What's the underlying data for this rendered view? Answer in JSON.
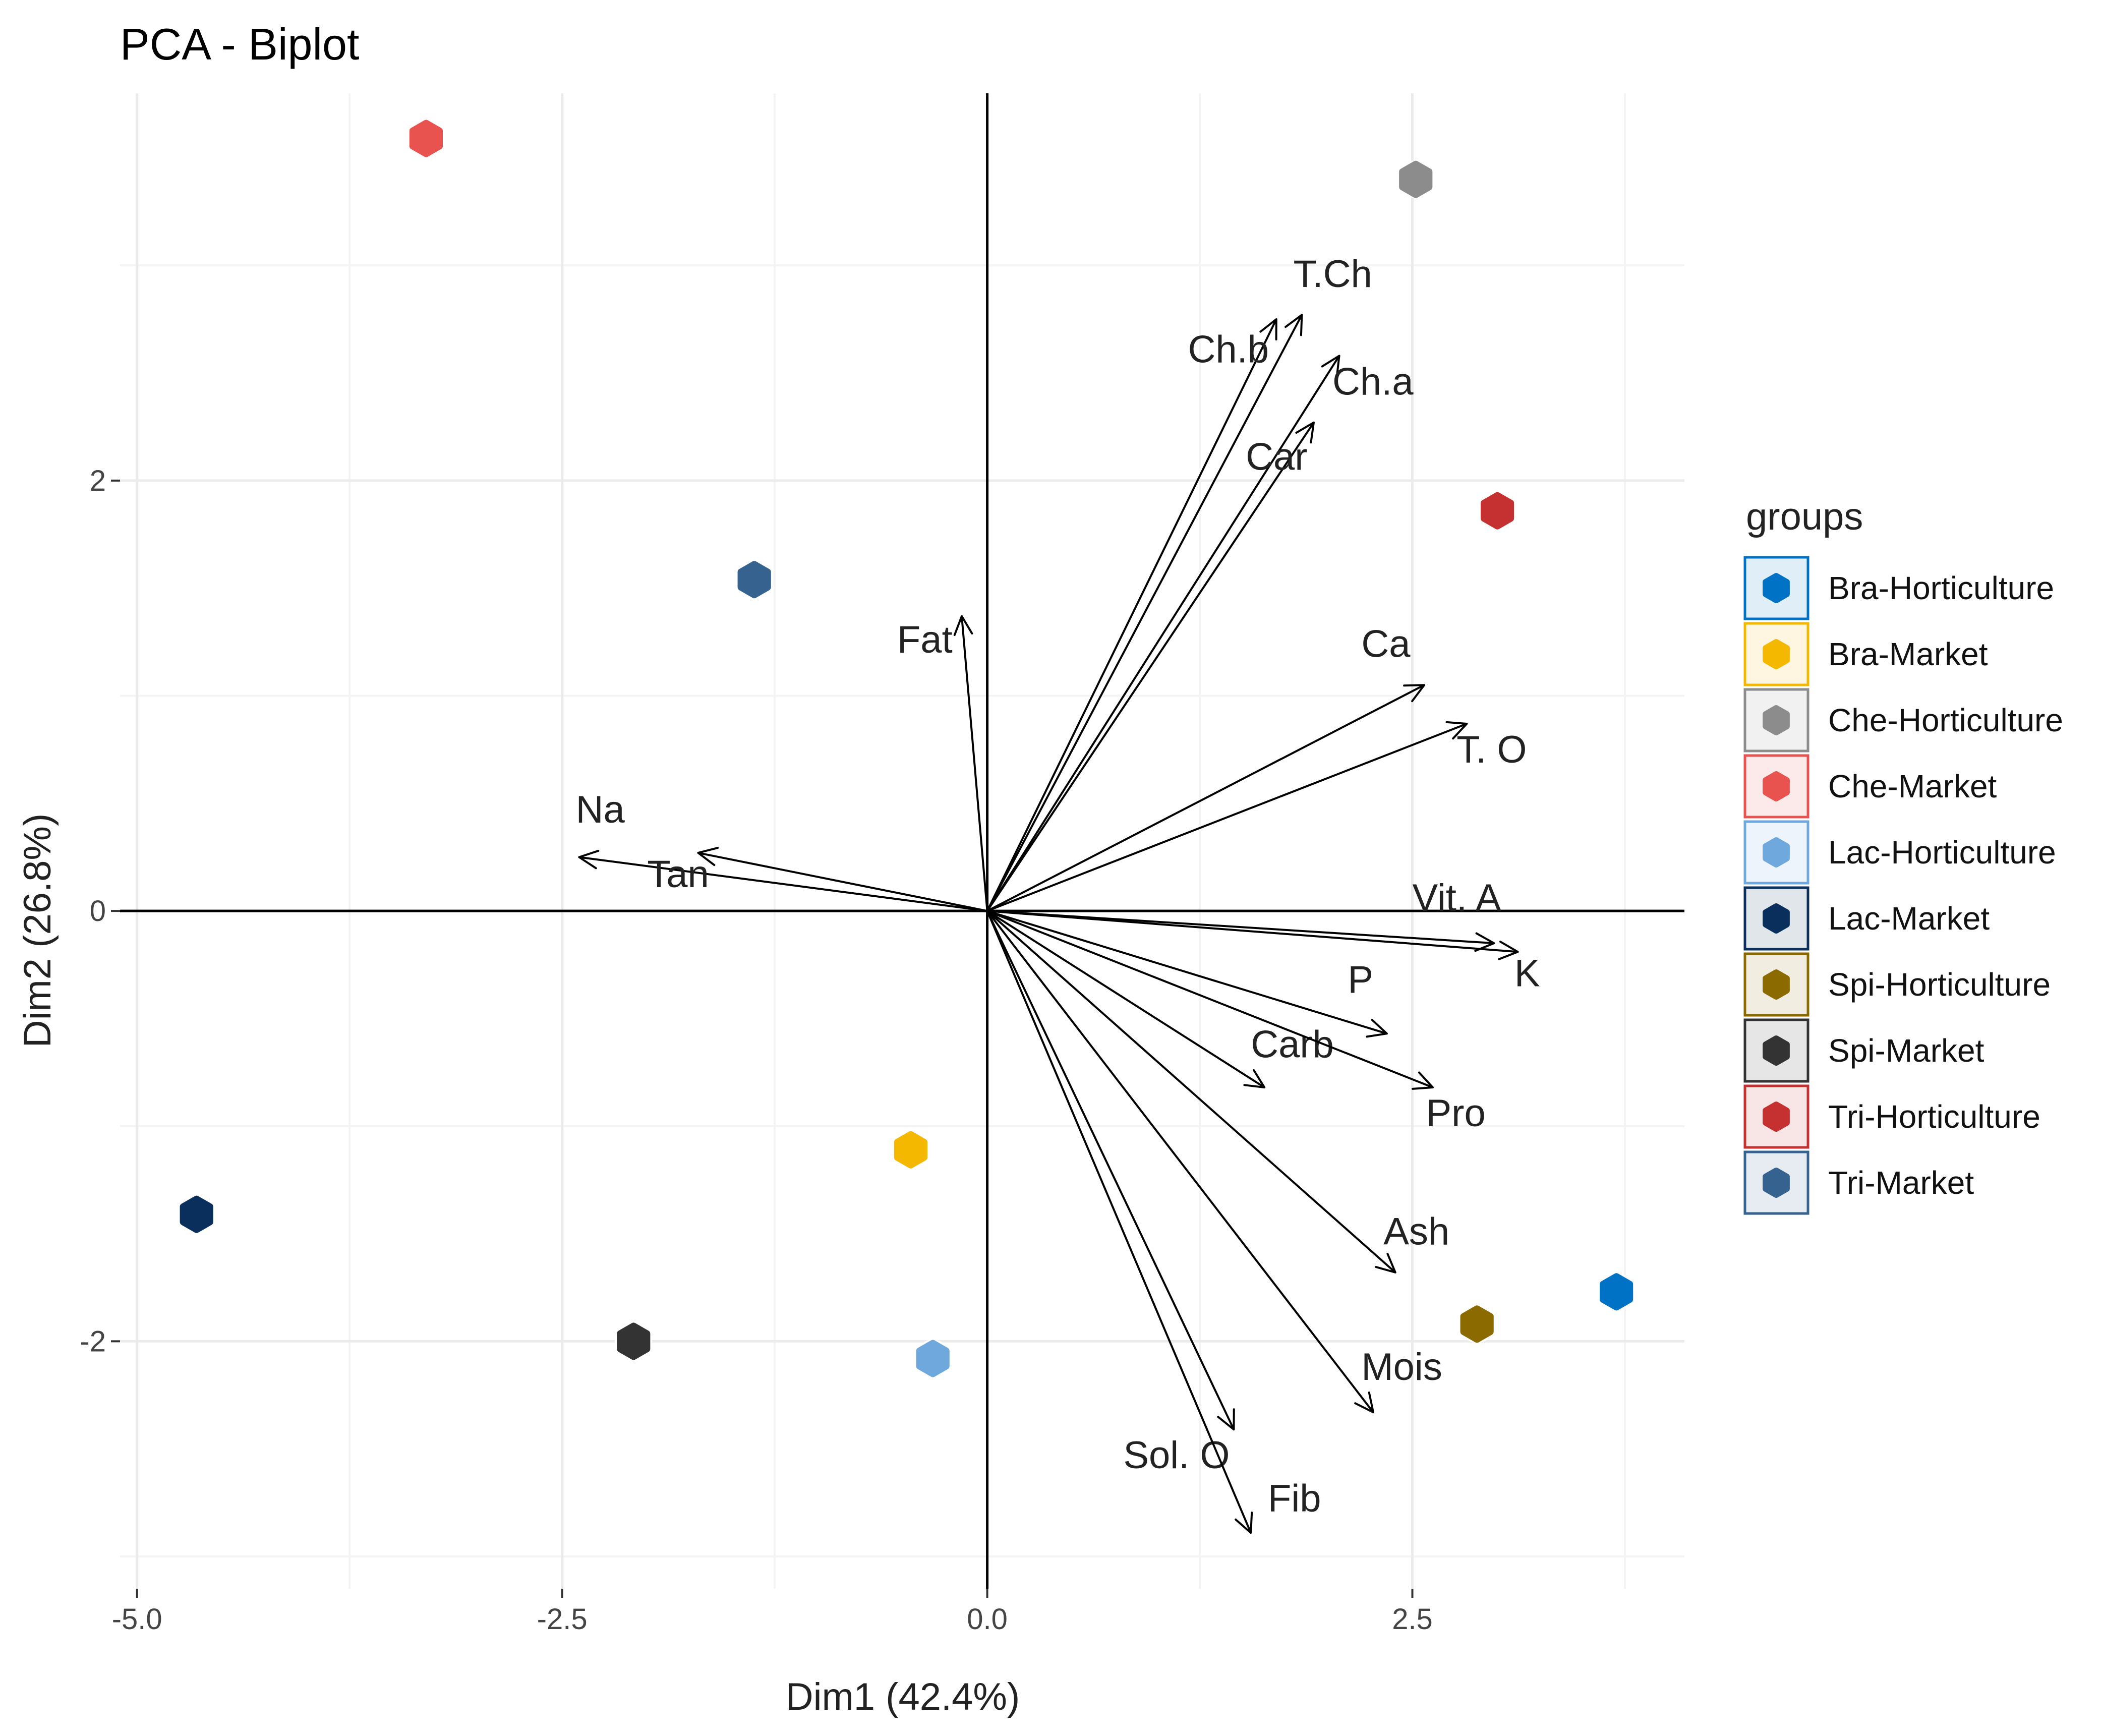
{
  "chart_data": {
    "type": "scatter",
    "title": "PCA - Biplot",
    "xlabel": "Dim1 (42.4%)",
    "ylabel": "Dim2 (26.8%)",
    "xlim": [
      -5.1,
      4.1
    ],
    "ylim": [
      -3.15,
      3.8
    ],
    "x_ticks": [
      -5.0,
      -2.5,
      0.0,
      2.5
    ],
    "x_tick_labels": [
      "-5.0",
      "-2.5",
      "0.0",
      "2.5"
    ],
    "y_ticks": [
      -2,
      0,
      2
    ],
    "y_tick_labels": [
      "-2",
      "0",
      "2"
    ],
    "grid": true,
    "legend": {
      "title": "groups",
      "position": "right",
      "entries": [
        {
          "label": "Bra-Horticulture",
          "color": "#0072c6"
        },
        {
          "label": "Bra-Market",
          "color": "#f5b800"
        },
        {
          "label": "Che-Horticulture",
          "color": "#8c8c8c"
        },
        {
          "label": "Che-Market",
          "color": "#e8524f"
        },
        {
          "label": "Lac-Horticulture",
          "color": "#6fa8dc"
        },
        {
          "label": "Lac-Market",
          "color": "#0b2f5c"
        },
        {
          "label": "Spi-Horticulture",
          "color": "#8b6a00"
        },
        {
          "label": "Spi-Market",
          "color": "#333333"
        },
        {
          "label": "Tri-Horticulture",
          "color": "#c43130"
        },
        {
          "label": "Tri-Market",
          "color": "#35628f"
        }
      ]
    },
    "points": [
      {
        "group": "Bra-Horticulture",
        "x": 3.7,
        "y": -1.77
      },
      {
        "group": "Bra-Market",
        "x": -0.45,
        "y": -1.11
      },
      {
        "group": "Che-Horticulture",
        "x": 2.52,
        "y": 3.4
      },
      {
        "group": "Che-Market",
        "x": -3.3,
        "y": 3.59
      },
      {
        "group": "Lac-Horticulture",
        "x": -0.32,
        "y": -2.08
      },
      {
        "group": "Lac-Market",
        "x": -4.65,
        "y": -1.41
      },
      {
        "group": "Spi-Horticulture",
        "x": 2.88,
        "y": -1.92
      },
      {
        "group": "Spi-Market",
        "x": -2.08,
        "y": -2.0
      },
      {
        "group": "Tri-Horticulture",
        "x": 3.0,
        "y": 1.86
      },
      {
        "group": "Tri-Market",
        "x": -1.37,
        "y": 1.54
      }
    ],
    "variables": [
      {
        "label": "T.Ch",
        "x": 1.85,
        "y": 2.77,
        "lx": 1.8,
        "ly": 2.9
      },
      {
        "label": "Ch.b",
        "x": 1.7,
        "y": 2.75,
        "lx": 1.18,
        "ly": 2.55
      },
      {
        "label": "Ch.a",
        "x": 2.07,
        "y": 2.58,
        "lx": 2.03,
        "ly": 2.4
      },
      {
        "label": "Car",
        "x": 1.92,
        "y": 2.27,
        "lx": 1.52,
        "ly": 2.05
      },
      {
        "label": "Fat",
        "x": -0.15,
        "y": 1.37,
        "lx": -0.53,
        "ly": 1.2
      },
      {
        "label": "Ca",
        "x": 2.57,
        "y": 1.05,
        "lx": 2.2,
        "ly": 1.18
      },
      {
        "label": "T. O",
        "x": 2.82,
        "y": 0.87,
        "lx": 2.76,
        "ly": 0.69
      },
      {
        "label": "Na",
        "x": -2.4,
        "y": 0.25,
        "lx": -2.42,
        "ly": 0.41
      },
      {
        "label": "Tan",
        "x": -1.7,
        "y": 0.27,
        "lx": -2.0,
        "ly": 0.11
      },
      {
        "label": "Vit. A",
        "x": 2.98,
        "y": -0.15,
        "lx": 2.5,
        "ly": 0.0
      },
      {
        "label": "K",
        "x": 3.12,
        "y": -0.19,
        "lx": 3.1,
        "ly": -0.35
      },
      {
        "label": "P",
        "x": 2.35,
        "y": -0.57,
        "lx": 2.12,
        "ly": -0.38
      },
      {
        "label": "Carb",
        "x": 1.63,
        "y": -0.82,
        "lx": 1.55,
        "ly": -0.68
      },
      {
        "label": "Pro",
        "x": 2.62,
        "y": -0.82,
        "lx": 2.58,
        "ly": -1.0
      },
      {
        "label": "Ash",
        "x": 2.4,
        "y": -1.68,
        "lx": 2.33,
        "ly": -1.55
      },
      {
        "label": "Mois",
        "x": 2.27,
        "y": -2.33,
        "lx": 2.2,
        "ly": -2.18
      },
      {
        "label": "Sol. O",
        "x": 1.45,
        "y": -2.41,
        "lx": 0.8,
        "ly": -2.59
      },
      {
        "label": "Fib",
        "x": 1.55,
        "y": -2.89,
        "lx": 1.65,
        "ly": -2.79
      }
    ]
  }
}
